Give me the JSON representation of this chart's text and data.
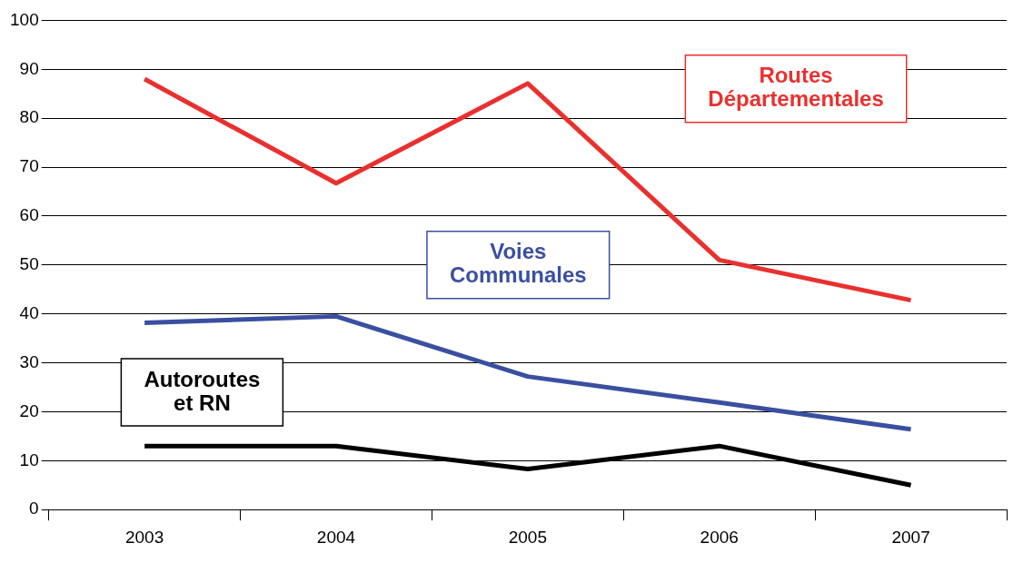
{
  "chart_data": {
    "type": "line",
    "categories": [
      "2003",
      "2004",
      "2005",
      "2006",
      "2007"
    ],
    "series": [
      {
        "name": "Routes Départementales",
        "color": "#e8312f",
        "values": [
          88,
          66.7,
          87.1,
          51,
          42.8
        ]
      },
      {
        "name": "Voies Communales",
        "color": "#3a4fa0",
        "values": [
          38.2,
          39.5,
          27.2,
          21.9,
          16.4
        ]
      },
      {
        "name": "Autoroutes et RN",
        "color": "#000000",
        "values": [
          13,
          13,
          8.3,
          13,
          5
        ]
      }
    ],
    "ylim": [
      0,
      100
    ],
    "yticks": [
      0,
      10,
      20,
      30,
      40,
      50,
      60,
      70,
      80,
      90,
      100
    ],
    "grid": "y",
    "legend": false,
    "marker": "none",
    "line_style": "solid"
  }
}
